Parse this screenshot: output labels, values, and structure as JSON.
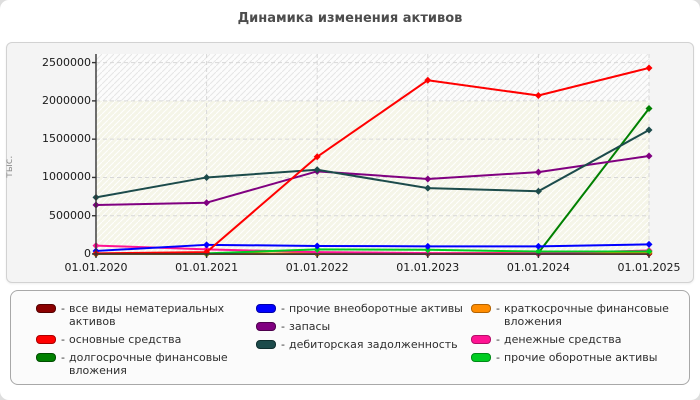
{
  "page": {
    "title": "Динамика изменения активов"
  },
  "legend": {
    "separator": "-"
  },
  "chart_data": {
    "type": "line",
    "title": "Динамика изменения активов",
    "xlabel": "",
    "ylabel": "тыс.",
    "ylim": [
      0,
      2500000
    ],
    "y_ticks": [
      0,
      500000,
      1000000,
      1500000,
      2000000,
      2500000
    ],
    "grid": "dashed",
    "legend_position": "bottom",
    "x_categories": [
      "01.01.2020",
      "01.01.2021",
      "01.01.2022",
      "01.01.2023",
      "01.01.2024",
      "01.01.2025"
    ],
    "plot_bg": "#f5f5e8",
    "plot_bg_top_band": "#fcfcfc",
    "grid_color": "#d8d8d8",
    "axis_color": "#333333",
    "series": [
      {
        "name": "все виды нематериальных активов",
        "color": "#8b0000",
        "edge": "#550000",
        "draw": 1,
        "values": [
          1000,
          1000,
          2000,
          2000,
          2000,
          2000
        ]
      },
      {
        "name": "основные средства",
        "color": "#ff0000",
        "edge": "#aa0000",
        "draw": 9,
        "values": [
          8000,
          25000,
          1270000,
          2270000,
          2070000,
          2430000
        ]
      },
      {
        "name": "долгосрочные финансовые вложения",
        "color": "#008000",
        "edge": "#004d00",
        "draw": 2,
        "values": [
          3000,
          5000,
          5000,
          5000,
          15000,
          1900000
        ]
      },
      {
        "name": "прочие внеоборотные активы",
        "color": "#0000ff",
        "edge": "#0000aa",
        "draw": 6,
        "values": [
          40000,
          120000,
          105000,
          100000,
          100000,
          125000
        ]
      },
      {
        "name": "запасы",
        "color": "#800080",
        "edge": "#4d004d",
        "draw": 7,
        "values": [
          640000,
          670000,
          1080000,
          980000,
          1070000,
          1280000
        ]
      },
      {
        "name": "дебиторская задолженность",
        "color": "#1c4b4b",
        "edge": "#0f2e2e",
        "draw": 8,
        "values": [
          740000,
          1000000,
          1100000,
          860000,
          820000,
          1620000
        ]
      },
      {
        "name": "краткосрочные финансовые вложения",
        "color": "#ff8c00",
        "edge": "#b36200",
        "draw": 3,
        "values": [
          1000,
          2000,
          8000,
          10000,
          15000,
          20000
        ]
      },
      {
        "name": "денежные средства",
        "color": "#ff1493",
        "edge": "#b30e68",
        "draw": 4,
        "values": [
          110000,
          60000,
          25000,
          12000,
          10000,
          45000
        ]
      },
      {
        "name": "прочие оборотные активы",
        "color": "#00cc22",
        "edge": "#008a17",
        "draw": 5,
        "values": [
          5000,
          8000,
          60000,
          55000,
          32000,
          32000
        ]
      }
    ]
  }
}
